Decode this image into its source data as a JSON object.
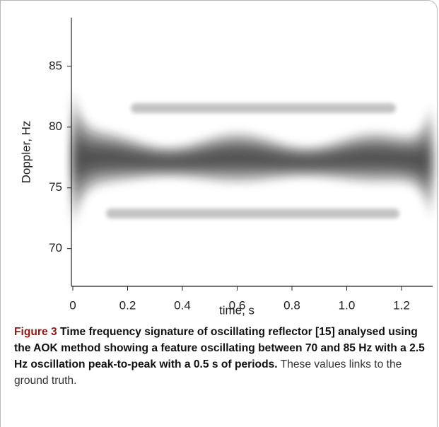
{
  "chart_data": {
    "type": "spectrogram",
    "xlabel": "time, s",
    "ylabel": "Doppler, Hz",
    "xlim": [
      0,
      1.31
    ],
    "ylim": [
      66.9,
      89
    ],
    "xticks": [
      0,
      0.2,
      0.4,
      0.6,
      0.8,
      {
        "value": 1,
        "label": "1.0"
      },
      1.2
    ],
    "yticks": [
      70,
      75,
      80,
      85
    ]
  },
  "caption": {
    "label": "Figure 3",
    "title": "Time frequency signature of oscillating reflector [15] analysed using the AOK method showing a feature oscillating between 70 and 85 Hz with a 2.5 Hz oscillation peak-to-peak with a 0.5 s of periods.",
    "text": "These values links to the ground truth."
  }
}
